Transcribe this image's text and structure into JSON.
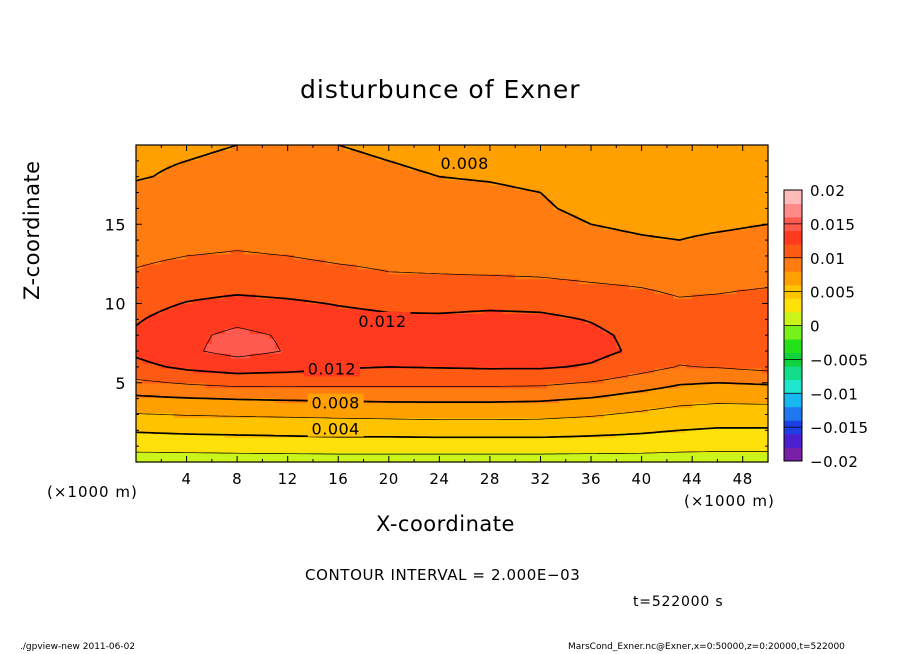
{
  "chart_data": {
    "type": "heatmap",
    "title": "disturbunce of Exner",
    "xlabel": "X-coordinate",
    "ylabel": "Z-coordinate",
    "x_unit": "(×1000 m)",
    "z_unit": "(×1000 m)",
    "xlim": [
      0,
      50
    ],
    "ylim": [
      0,
      20
    ],
    "x_ticks": [
      4,
      8,
      12,
      16,
      20,
      24,
      28,
      32,
      36,
      40,
      44,
      48
    ],
    "x_tick_labels": [
      "4",
      "8",
      "12",
      "16",
      "20",
      "24",
      "28",
      "32",
      "36",
      "40",
      "44",
      "48"
    ],
    "y_ticks": [
      5,
      10,
      15
    ],
    "y_tick_labels": [
      "5",
      "10",
      "15"
    ],
    "colorbar": {
      "min": -0.02,
      "max": 0.02,
      "ticks": [
        0.02,
        0.015,
        0.01,
        0.005,
        0,
        -0.005,
        -0.01,
        -0.015,
        -0.02
      ],
      "tick_labels": [
        "0.02",
        "0.015",
        "0.01",
        "0.005",
        "0",
        "−0.005",
        "−0.01",
        "−0.015",
        "−0.02"
      ],
      "level_colors": [
        "#7a1fa8",
        "#4b1fd0",
        "#1e3fe6",
        "#1f78f0",
        "#17b8f0",
        "#1ee6cf",
        "#14dd8a",
        "#10d23c",
        "#25e11a",
        "#78f01a",
        "#cbf51a",
        "#ffe10a",
        "#ffc300",
        "#ffa000",
        "#ff7c10",
        "#ff5a14",
        "#ff3a1e",
        "#ff5a4e",
        "#ff8a88",
        "#ffbaba"
      ]
    },
    "x_sample": [
      0,
      4,
      8,
      12,
      16,
      20,
      24,
      28,
      32,
      36,
      40,
      43,
      46,
      50
    ],
    "z_sample": [
      0,
      1,
      2,
      3,
      4,
      5,
      6,
      7,
      8,
      9,
      10,
      11,
      12,
      13,
      14,
      15,
      16,
      17,
      18,
      19,
      20
    ],
    "values_x1e3": [
      [
        1.0,
        1.0,
        1.0,
        1.0,
        1.0,
        1.0,
        1.0,
        1.0,
        1.0,
        1.0,
        1.0,
        1.0,
        1.0,
        1.0
      ],
      [
        2.6,
        2.7,
        2.8,
        2.9,
        3.0,
        3.0,
        3.0,
        3.0,
        3.0,
        2.9,
        2.8,
        2.6,
        2.5,
        2.5
      ],
      [
        4.2,
        4.4,
        4.5,
        4.6,
        4.7,
        4.7,
        4.8,
        4.8,
        4.8,
        4.6,
        4.3,
        4.0,
        3.8,
        3.8
      ],
      [
        5.9,
        6.1,
        6.2,
        6.3,
        6.4,
        6.5,
        6.6,
        6.6,
        6.5,
        6.2,
        5.7,
        5.3,
        5.1,
        5.1
      ],
      [
        7.6,
        7.9,
        8.1,
        8.2,
        8.3,
        8.4,
        8.4,
        8.4,
        8.3,
        7.9,
        7.1,
        6.6,
        6.4,
        6.5
      ],
      [
        9.6,
        10.2,
        10.6,
        10.6,
        10.5,
        10.5,
        10.5,
        10.5,
        10.4,
        9.9,
        9.0,
        8.2,
        8.0,
        8.2
      ],
      [
        11.4,
        12.4,
        13.0,
        12.7,
        12.2,
        12.0,
        12.1,
        12.2,
        12.2,
        11.8,
        10.7,
        9.9,
        10.1,
        10.6
      ],
      [
        12.4,
        13.7,
        14.6,
        13.9,
        13.2,
        12.9,
        13.0,
        13.3,
        13.3,
        12.6,
        11.6,
        10.7,
        11.1,
        11.8
      ],
      [
        12.3,
        13.6,
        14.4,
        13.8,
        13.2,
        12.9,
        13.0,
        13.2,
        13.1,
        12.4,
        11.5,
        10.6,
        11.1,
        11.7
      ],
      [
        11.8,
        13.0,
        13.6,
        13.1,
        12.6,
        12.3,
        12.3,
        12.5,
        12.4,
        11.9,
        11.1,
        10.4,
        10.7,
        11.2
      ],
      [
        11.2,
        12.1,
        12.6,
        12.3,
        11.9,
        11.6,
        11.5,
        11.6,
        11.5,
        11.1,
        10.6,
        10.2,
        10.3,
        10.6
      ],
      [
        10.7,
        11.2,
        11.5,
        11.3,
        11.0,
        10.8,
        10.7,
        10.7,
        10.6,
        10.3,
        10.0,
        9.7,
        9.8,
        10.0
      ],
      [
        10.1,
        10.5,
        10.6,
        10.4,
        10.2,
        10.0,
        9.9,
        9.8,
        9.7,
        9.4,
        9.2,
        9.1,
        9.2,
        9.4
      ],
      [
        9.7,
        10.0,
        10.1,
        10.0,
        9.8,
        9.7,
        9.5,
        9.3,
        9.0,
        8.7,
        8.5,
        8.5,
        8.6,
        8.8
      ],
      [
        9.4,
        9.7,
        9.8,
        9.7,
        9.6,
        9.4,
        9.2,
        8.9,
        8.6,
        8.3,
        8.1,
        8.0,
        8.2,
        8.4
      ],
      [
        9.0,
        9.4,
        9.5,
        9.4,
        9.3,
        9.1,
        8.9,
        8.6,
        8.3,
        8.0,
        7.8,
        7.7,
        7.8,
        8.0
      ],
      [
        8.7,
        9.1,
        9.2,
        9.1,
        9.0,
        8.8,
        8.6,
        8.4,
        8.1,
        7.8,
        7.6,
        7.5,
        7.6,
        7.8
      ],
      [
        8.3,
        8.6,
        8.8,
        8.7,
        8.6,
        8.5,
        8.3,
        8.2,
        8.0,
        7.7,
        7.5,
        7.4,
        7.5,
        7.7
      ],
      [
        7.9,
        8.2,
        8.3,
        8.3,
        8.2,
        8.1,
        8.0,
        7.9,
        7.7,
        7.5,
        7.3,
        7.2,
        7.3,
        7.5
      ],
      [
        7.8,
        8.0,
        8.1,
        8.1,
        8.1,
        8.0,
        7.9,
        7.8,
        7.6,
        7.4,
        7.2,
        7.1,
        7.2,
        7.4
      ],
      [
        7.8,
        7.9,
        8.0,
        8.0,
        8.0,
        7.9,
        7.8,
        7.7,
        7.6,
        7.4,
        7.2,
        7.1,
        7.2,
        7.3
      ]
    ],
    "contour_labels": [
      {
        "text": "0.008",
        "x": 26,
        "z": 18.85
      },
      {
        "text": "0.012",
        "x": 19.5,
        "z": 8.9
      },
      {
        "text": "0.012",
        "x": 15.5,
        "z": 5.9
      },
      {
        "text": "0.008",
        "x": 15.8,
        "z": 3.75
      },
      {
        "text": "0.004",
        "x": 15.8,
        "z": 2.1
      }
    ],
    "contour_interval_text": "CONTOUR INTERVAL = 2.000E−03",
    "time_text": "t=522000 s"
  },
  "footer": {
    "left": "./gpview-new  2011-06-02",
    "right": "MarsCond_Exner.nc@Exner,x=0:50000,z=0:20000,t=522000"
  }
}
